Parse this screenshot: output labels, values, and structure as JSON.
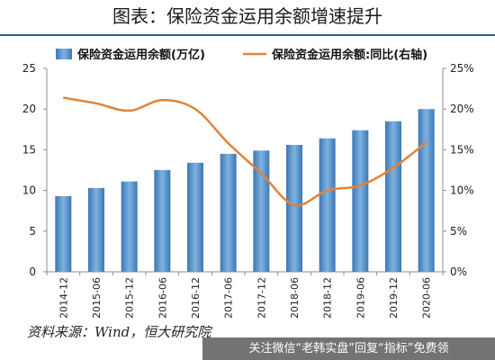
{
  "title": "图表：保险资金运用余额增速提升",
  "source": "资料来源：Wind，恒大研究院",
  "footer_banner": "关注微信“老韩实盘”回复“指标”免费领",
  "chart_data": {
    "type": "bar+line",
    "categories": [
      "2014-12",
      "2015-06",
      "2015-12",
      "2016-06",
      "2016-12",
      "2017-06",
      "2017-12",
      "2018-06",
      "2018-12",
      "2019-06",
      "2019-12",
      "2020-06"
    ],
    "series": [
      {
        "name": "保险资金运用余额(万亿)",
        "type": "bar",
        "axis": "left",
        "values": [
          9.3,
          10.3,
          11.1,
          12.5,
          13.4,
          14.5,
          14.9,
          15.6,
          16.4,
          17.4,
          18.5,
          20.0
        ]
      },
      {
        "name": "保险资金运用余额:同比(右轴)",
        "type": "line",
        "axis": "right",
        "values": [
          21.4,
          20.7,
          19.8,
          21.1,
          20.0,
          15.8,
          12.1,
          8.2,
          10.0,
          10.6,
          12.8,
          15.9
        ]
      }
    ],
    "y_left": {
      "range": [
        0,
        25
      ],
      "ticks": [
        "0",
        "5",
        "10",
        "15",
        "20",
        "25"
      ]
    },
    "y_right": {
      "range": [
        0,
        25
      ],
      "ticks": [
        "0%",
        "5%",
        "10%",
        "15%",
        "20%",
        "25%"
      ]
    },
    "legend_position": "top",
    "grid": false,
    "colors": {
      "bar": "#3c78b4",
      "bar_light": "#7fb2e0",
      "line": "#e0843a",
      "axis": "#8c8c8c"
    }
  }
}
